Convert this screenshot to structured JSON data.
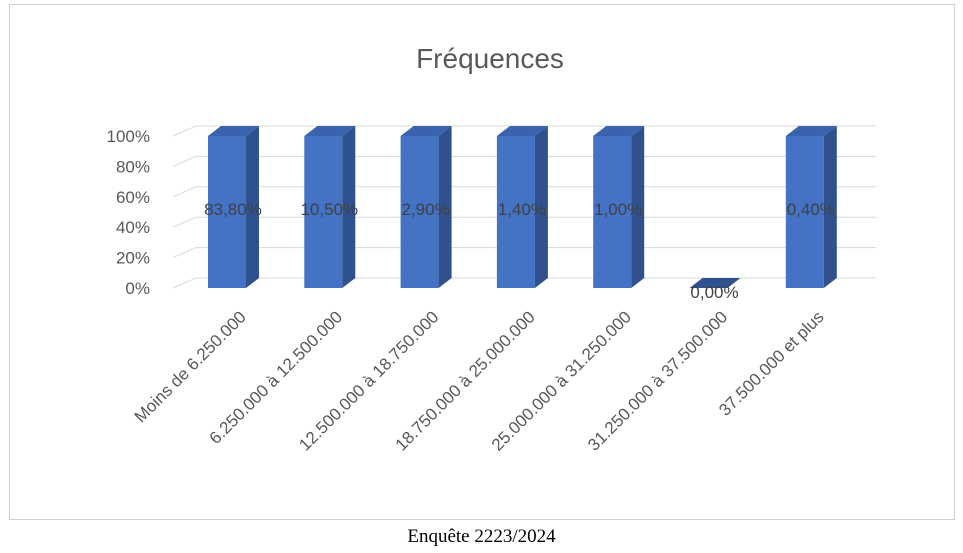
{
  "chart_data": {
    "type": "bar",
    "title": "Fréquences",
    "categories": [
      "Moins de 6.250.000",
      "6.250.000 à 12.500.000",
      "12.500.000 à 18.750.000",
      "18.750.000 à 25.000.000",
      "25.000.000 à 31.250.000",
      "31.250.000 à 37.500.000",
      "37.500.000 et plus"
    ],
    "values": [
      83.8,
      10.5,
      2.9,
      1.4,
      1.0,
      0.0,
      0.4
    ],
    "bar_display_values": [
      100,
      100,
      100,
      100,
      100,
      0,
      100
    ],
    "data_labels": [
      "83,80%",
      "10,50%",
      "2,90%",
      "1,40%",
      "1,00%",
      "0,00%",
      "0,40%"
    ],
    "y_ticks": [
      "0%",
      "20%",
      "40%",
      "60%",
      "80%",
      "100%"
    ],
    "ylim": [
      0,
      100
    ],
    "grid": true,
    "style": "3d-column",
    "colors": {
      "front": "#4472C4",
      "side": "#2F528F",
      "top": "#3A62AD",
      "grid": "#D9D9D9"
    }
  },
  "caption": "Enquête 2223/2024"
}
